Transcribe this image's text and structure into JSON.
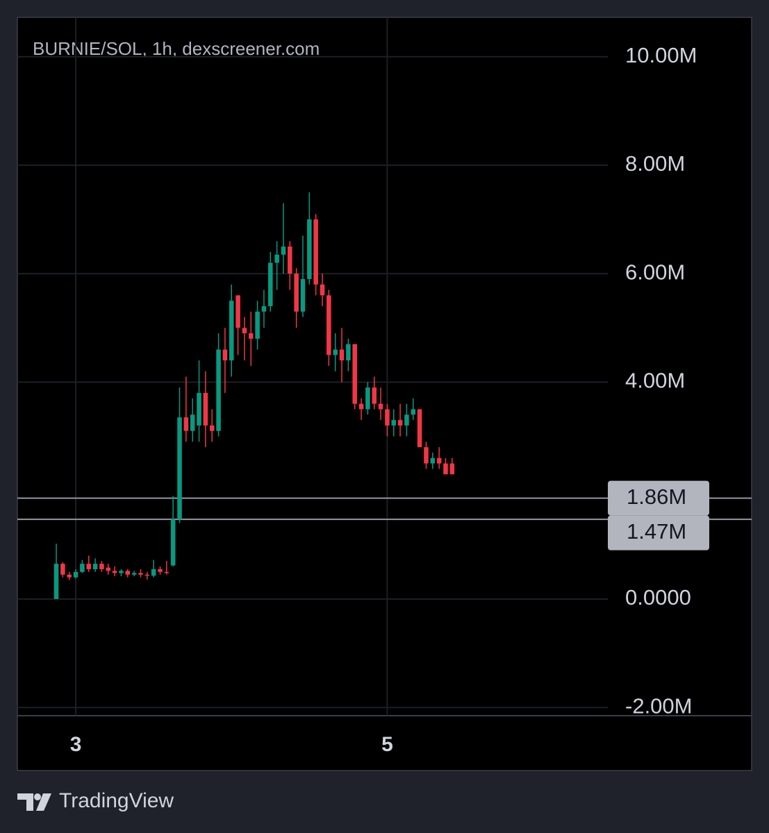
{
  "chart_data": {
    "type": "candlestick",
    "title": "BURNIE/SOL, 1h, dexscreener.com",
    "up_color": "#089981",
    "down_color": "#f23645",
    "grid": true,
    "x": [
      -3,
      -2,
      -1,
      0,
      1,
      2,
      3,
      4,
      5,
      6,
      7,
      8,
      9,
      10,
      11,
      12,
      13,
      14,
      15,
      16,
      17,
      18,
      19,
      20,
      21,
      22,
      23,
      24,
      25,
      26,
      27,
      28,
      29,
      30,
      31,
      32,
      33,
      34,
      35,
      36,
      37,
      38,
      39,
      40,
      41,
      42,
      43,
      44,
      45,
      46,
      47,
      48,
      49,
      50,
      51,
      52,
      53,
      54,
      55,
      56,
      57,
      58
    ],
    "open": [
      0,
      650000,
      450000,
      400000,
      500000,
      650000,
      550000,
      650000,
      580000,
      520000,
      480000,
      520000,
      450000,
      480000,
      450000,
      430000,
      550000,
      500000,
      620000,
      1470000,
      3350000,
      3100000,
      3200000,
      3800000,
      3200000,
      3100000,
      4600000,
      4400000,
      5600000,
      5000000,
      4900000,
      4800000,
      5300000,
      5400000,
      6200000,
      6350000,
      6500000,
      6000000,
      5300000,
      5900000,
      7000000,
      5800000,
      5600000,
      4500000,
      4600000,
      4400000,
      4700000,
      3600000,
      3500000,
      3900000,
      3600000,
      3500000,
      3200000,
      3300000,
      3200000,
      3400000,
      3500000,
      2800000,
      2500000,
      2600000,
      2500000,
      2500000
    ],
    "high": [
      1020000,
      680000,
      500000,
      550000,
      720000,
      800000,
      750000,
      700000,
      650000,
      600000,
      550000,
      550000,
      520000,
      550000,
      500000,
      720000,
      600000,
      700000,
      1900000,
      3900000,
      4100000,
      3700000,
      4400000,
      4200000,
      3500000,
      4900000,
      5000000,
      5800000,
      5600000,
      5200000,
      5300000,
      5500000,
      5700000,
      6400000,
      6600000,
      7300000,
      6600000,
      6100000,
      6700000,
      7500000,
      7100000,
      6000000,
      5700000,
      4900000,
      5000000,
      4800000,
      4700000,
      3700000,
      4000000,
      4100000,
      3900000,
      3600000,
      3500000,
      3600000,
      3600000,
      3700000,
      3500000,
      2900000,
      2700000,
      2800000,
      2600000,
      2600000
    ],
    "low": [
      0,
      400000,
      350000,
      380000,
      480000,
      500000,
      500000,
      500000,
      450000,
      420000,
      420000,
      400000,
      420000,
      400000,
      360000,
      400000,
      450000,
      450000,
      600000,
      1400000,
      2900000,
      2900000,
      2900000,
      2800000,
      2900000,
      3000000,
      3800000,
      4100000,
      4500000,
      4400000,
      4300000,
      4600000,
      5000000,
      5300000,
      5700000,
      6000000,
      5700000,
      5000000,
      5200000,
      5800000,
      5600000,
      5400000,
      4300000,
      4200000,
      4000000,
      4200000,
      3500000,
      3300000,
      3400000,
      3500000,
      3300000,
      3000000,
      3000000,
      3000000,
      3000000,
      3300000,
      2800000,
      2400000,
      2400000,
      2400000,
      2300000,
      2300000
    ],
    "close": [
      650000,
      450000,
      400000,
      500000,
      650000,
      550000,
      650000,
      550000,
      520000,
      480000,
      520000,
      450000,
      480000,
      450000,
      430000,
      550000,
      500000,
      480000,
      1470000,
      3350000,
      3100000,
      3400000,
      3800000,
      3200000,
      3100000,
      4600000,
      4400000,
      5500000,
      5000000,
      4900000,
      4800000,
      5300000,
      5400000,
      6200000,
      6350000,
      6500000,
      6000000,
      5300000,
      5900000,
      7000000,
      5800000,
      5600000,
      4500000,
      4600000,
      4400000,
      4700000,
      3600000,
      3500000,
      3900000,
      3600000,
      3500000,
      3200000,
      3300000,
      3200000,
      3400000,
      3500000,
      2800000,
      2500000,
      2600000,
      2500000,
      2300000,
      2300000
    ],
    "xlim": [
      -9,
      82
    ],
    "xticks": [
      {
        "value": 0,
        "label": "3"
      },
      {
        "value": 48,
        "label": "5"
      }
    ],
    "ylim": [
      -2100000,
      10700000
    ],
    "yticks": [
      {
        "value": -2000000,
        "label": "-2.00M"
      },
      {
        "value": 0,
        "label": "0.0000"
      },
      {
        "value": 4000000,
        "label": "4.00M"
      },
      {
        "value": 6000000,
        "label": "6.00M"
      },
      {
        "value": 8000000,
        "label": "8.00M"
      },
      {
        "value": 10000000,
        "label": "10.00M"
      }
    ],
    "price_lines": [
      {
        "value": 1860000,
        "label": "1.86M"
      },
      {
        "value": 1470000,
        "label": "1.47M"
      }
    ]
  },
  "footer": {
    "brand": "TradingView"
  }
}
